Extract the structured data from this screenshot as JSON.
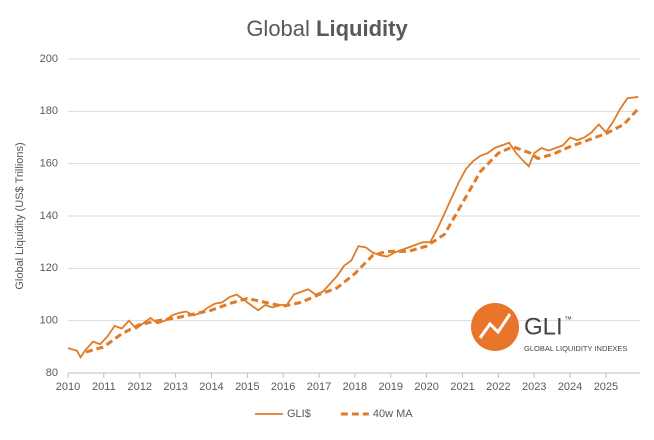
{
  "chart_data": {
    "type": "line",
    "title": {
      "regular": "Global",
      "bold": "Liquidity"
    },
    "y_label": "Global Liquidity (US$ Trillions)",
    "logo": {
      "name": "GLI",
      "mark": "™",
      "tagline": "GLOBAL LIQUIDITY INDEXES"
    },
    "xlim": [
      2010,
      2025.95
    ],
    "xticks": [
      2010,
      2011,
      2012,
      2013,
      2014,
      2015,
      2016,
      2017,
      2018,
      2019,
      2020,
      2021,
      2022,
      2023,
      2024,
      2025
    ],
    "ylim": [
      80,
      200
    ],
    "yticks": [
      80,
      100,
      120,
      140,
      160,
      180,
      200
    ],
    "grid": true,
    "legend": "bottom",
    "series": [
      {
        "name": "GLI$",
        "color": "#e07b28",
        "style": "solid",
        "x": [
          2010.0,
          2010.25,
          2010.35,
          2010.5,
          2010.7,
          2010.9,
          2011.1,
          2011.3,
          2011.5,
          2011.7,
          2011.9,
          2012.1,
          2012.3,
          2012.5,
          2012.7,
          2012.9,
          2013.1,
          2013.3,
          2013.5,
          2013.7,
          2013.9,
          2014.1,
          2014.3,
          2014.5,
          2014.7,
          2014.9,
          2015.1,
          2015.3,
          2015.5,
          2015.7,
          2015.9,
          2016.1,
          2016.3,
          2016.5,
          2016.7,
          2016.9,
          2017.1,
          2017.3,
          2017.5,
          2017.7,
          2017.9,
          2018.1,
          2018.3,
          2018.5,
          2018.7,
          2018.9,
          2019.1,
          2019.3,
          2019.5,
          2019.7,
          2019.9,
          2020.1,
          2020.3,
          2020.5,
          2020.7,
          2020.9,
          2021.1,
          2021.3,
          2021.5,
          2021.7,
          2021.9,
          2022.1,
          2022.3,
          2022.5,
          2022.7,
          2022.85,
          2023.0,
          2023.2,
          2023.4,
          2023.6,
          2023.8,
          2024.0,
          2024.2,
          2024.4,
          2024.6,
          2024.8,
          2025.0,
          2025.2,
          2025.4,
          2025.6,
          2025.9
        ],
        "values": [
          89.5,
          88.5,
          86,
          89,
          92,
          91,
          94,
          98,
          97,
          100,
          97,
          99,
          101,
          99,
          100,
          102,
          103,
          103.5,
          102,
          103,
          105,
          106.5,
          107,
          109,
          110,
          108,
          106,
          104,
          106,
          105,
          106,
          106,
          110,
          111,
          112,
          110,
          111,
          114,
          117,
          121,
          123,
          128.5,
          128,
          126,
          125,
          124.5,
          126,
          127,
          128,
          129,
          130,
          130,
          135,
          141,
          147,
          153,
          158,
          161,
          163,
          164,
          166,
          167,
          168,
          164,
          161,
          159,
          164,
          166,
          165,
          166,
          167,
          170,
          169,
          170,
          172,
          175,
          172,
          176,
          181,
          185,
          185.5
        ]
      },
      {
        "name": "40w MA",
        "color": "#e07b28",
        "style": "dashed",
        "x": [
          2010.5,
          2011.0,
          2011.5,
          2012.0,
          2012.5,
          2013.0,
          2013.5,
          2014.0,
          2014.5,
          2015.0,
          2015.5,
          2016.0,
          2016.5,
          2017.0,
          2017.5,
          2018.0,
          2018.5,
          2018.9,
          2019.5,
          2020.0,
          2020.5,
          2021.0,
          2021.5,
          2022.0,
          2022.4,
          2022.9,
          2023.1,
          2023.5,
          2024.0,
          2024.5,
          2025.0,
          2025.5,
          2025.9
        ],
        "values": [
          88,
          90,
          95,
          98.5,
          100,
          101,
          102.5,
          104,
          106.5,
          108.5,
          107,
          105.5,
          107,
          110,
          112.5,
          118,
          125,
          126.5,
          126.5,
          128.5,
          133,
          145,
          157,
          164,
          166.5,
          164,
          162,
          163.5,
          166.5,
          169,
          171.5,
          175,
          181
        ]
      }
    ]
  }
}
